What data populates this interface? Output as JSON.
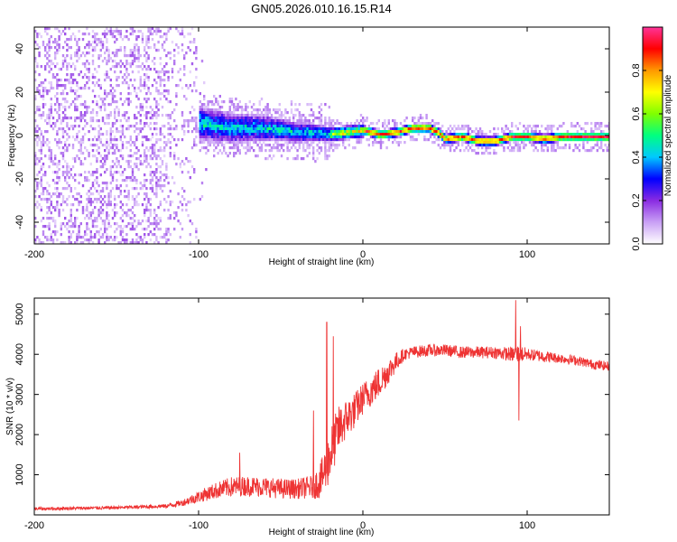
{
  "title": "GN05.2026.010.16.15.R14",
  "chart_data": [
    {
      "type": "heatmap",
      "title": "GN05.2026.010.16.15.R14",
      "xlabel": "Height of straight line (km)",
      "ylabel": "Frequency (Hz)",
      "xlim": [
        -200,
        150
      ],
      "ylim": [
        -50,
        50
      ],
      "x_ticks": [
        -200,
        -100,
        0,
        100
      ],
      "x_tick_labels": [
        "-200",
        "-100",
        "0",
        "100"
      ],
      "y_ticks": [
        -40,
        -20,
        0,
        20,
        40
      ],
      "y_tick_labels": [
        "-40",
        "-20",
        "0",
        "20",
        "40"
      ],
      "colorbar": {
        "label": "Normalized spectral amplitude",
        "range": [
          0,
          1
        ],
        "ticks": [
          0.0,
          0.2,
          0.4,
          0.6,
          0.8
        ],
        "tick_labels": [
          "0.0",
          "0.2",
          "0.4",
          "0.6",
          "0.8"
        ],
        "colors": [
          "#ffffff",
          "#c9a0f5",
          "#8a2be2",
          "#0000ff",
          "#00c8ff",
          "#00ff80",
          "#80ff00",
          "#ffff00",
          "#ff9900",
          "#ff0000",
          "#ff3399"
        ]
      },
      "ridge": {
        "x": [
          -110,
          -100,
          -90,
          -80,
          -70,
          -60,
          -50,
          -40,
          -30,
          -20,
          -10,
          0,
          10,
          20,
          30,
          40,
          45,
          50,
          60,
          70,
          80,
          90,
          100,
          110,
          120,
          130,
          140,
          150
        ],
        "freq": [
          6,
          6,
          5,
          4,
          4,
          4,
          3,
          2,
          2,
          1,
          2,
          3,
          1,
          2,
          4,
          4,
          2,
          -1,
          0,
          -2,
          -2,
          0,
          0,
          -1,
          0,
          0,
          0,
          0
        ]
      },
      "noise_region_x": [
        -200,
        -100
      ]
    },
    {
      "type": "line",
      "xlabel": "Height of straight line (km)",
      "ylabel": "SNR (10 * v/v)",
      "xlim": [
        -200,
        150
      ],
      "ylim": [
        0,
        5400
      ],
      "x_ticks": [
        -200,
        -100,
        0,
        100
      ],
      "x_tick_labels": [
        "-200",
        "-100",
        "0",
        "100"
      ],
      "y_ticks": [
        1000,
        2000,
        3000,
        4000,
        5000
      ],
      "y_tick_labels": [
        "1000",
        "2000",
        "3000",
        "4000",
        "5000"
      ],
      "color": "#ee3333",
      "series": [
        {
          "name": "SNR",
          "x": [
            -200,
            -150,
            -120,
            -110,
            -100,
            -90,
            -80,
            -70,
            -60,
            -50,
            -40,
            -30,
            -25,
            -20,
            -15,
            -10,
            -5,
            0,
            10,
            20,
            25,
            30,
            40,
            50,
            60,
            70,
            80,
            90,
            95,
            100,
            110,
            120,
            130,
            140,
            150
          ],
          "mean": [
            150,
            180,
            220,
            300,
            450,
            600,
            700,
            720,
            700,
            650,
            650,
            700,
            900,
            1500,
            2100,
            2400,
            2600,
            2900,
            3300,
            3800,
            4000,
            4050,
            4100,
            4100,
            4050,
            4050,
            4050,
            4000,
            4000,
            4000,
            3950,
            3900,
            3850,
            3750,
            3700
          ],
          "spread": [
            40,
            40,
            50,
            80,
            150,
            200,
            250,
            250,
            250,
            250,
            250,
            300,
            500,
            700,
            600,
            500,
            450,
            400,
            400,
            250,
            150,
            150,
            150,
            150,
            150,
            150,
            150,
            180,
            250,
            150,
            150,
            120,
            120,
            120,
            120
          ]
        }
      ],
      "spikes": [
        {
          "x": -22,
          "value": 4800
        },
        {
          "x": -18,
          "value": 4450
        },
        {
          "x": -30,
          "value": 2600
        },
        {
          "x": -75,
          "value": 1550
        },
        {
          "x": 93,
          "value": 5350
        },
        {
          "x": 96,
          "value": 4700
        },
        {
          "x": 95,
          "value": 2350
        }
      ]
    }
  ]
}
